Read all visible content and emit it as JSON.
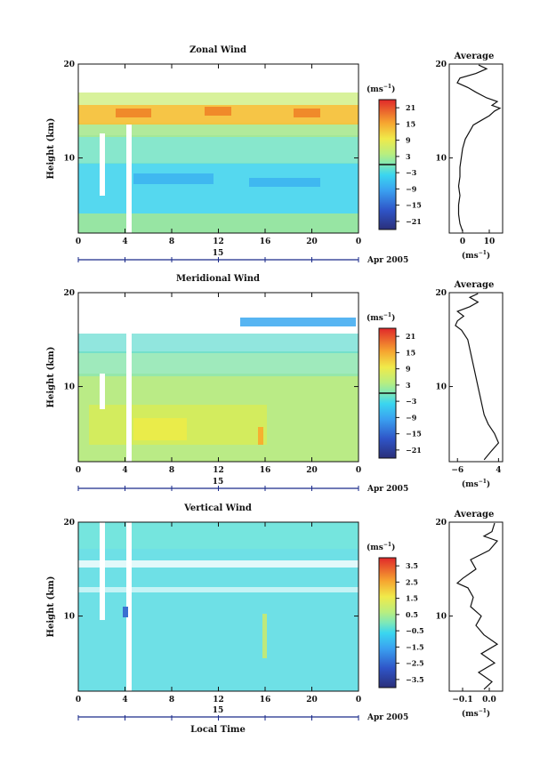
{
  "figure": {
    "ylabel": "Height (km)",
    "xlabel": "Local Time",
    "date_label": "Apr 2005",
    "day_label": "15",
    "cb_unit": "(ms",
    "cb_unit_exp": "−1",
    "cb_unit_close": ")",
    "avg_unit": "(ms",
    "avg_unit_exp": "−1",
    "avg_unit_close": ")"
  },
  "chart_data": [
    {
      "type": "heatmap",
      "title": "Zonal Wind",
      "xlabel": "",
      "ylabel": "Height (km)",
      "x_ticks": [
        "0",
        "4",
        "8",
        "12",
        "16",
        "20",
        "0"
      ],
      "y_ticks": [
        "10",
        "20"
      ],
      "xlim": [
        0,
        24
      ],
      "ylim": [
        2,
        20
      ],
      "colorbar": {
        "labels": [
          "21",
          "15",
          "9",
          "3",
          "−3",
          "−9",
          "−15",
          "−21"
        ],
        "range": [
          -24,
          24
        ],
        "zero_line": 0
      },
      "avg_title": "Average",
      "avg_xlim": [
        -5,
        15
      ],
      "avg_xticks": [
        "0",
        "10"
      ],
      "avg_yticks": [
        "10",
        "20"
      ],
      "profile": [
        {
          "h": 2.2,
          "v": 0
        },
        {
          "h": 3,
          "v": -1
        },
        {
          "h": 4,
          "v": -1.5
        },
        {
          "h": 5,
          "v": -1.5
        },
        {
          "h": 6,
          "v": -1
        },
        {
          "h": 7,
          "v": -1.5
        },
        {
          "h": 8,
          "v": -1
        },
        {
          "h": 9,
          "v": -1
        },
        {
          "h": 10,
          "v": -0.5
        },
        {
          "h": 11,
          "v": 0
        },
        {
          "h": 12,
          "v": 1
        },
        {
          "h": 13,
          "v": 3
        },
        {
          "h": 13.5,
          "v": 4
        },
        {
          "h": 14,
          "v": 7
        },
        {
          "h": 14.5,
          "v": 10
        },
        {
          "h": 15,
          "v": 12
        },
        {
          "h": 15.3,
          "v": 14
        },
        {
          "h": 15.6,
          "v": 11
        },
        {
          "h": 16,
          "v": 13
        },
        {
          "h": 16.4,
          "v": 9
        },
        {
          "h": 17,
          "v": 5
        },
        {
          "h": 17.5,
          "v": 2
        },
        {
          "h": 18,
          "v": -2
        },
        {
          "h": 18.5,
          "v": -1
        },
        {
          "h": 19,
          "v": 5
        },
        {
          "h": 19.5,
          "v": 9
        },
        {
          "h": 19.9,
          "v": 6
        }
      ]
    },
    {
      "type": "heatmap",
      "title": "Meridional Wind",
      "xlabel": "",
      "ylabel": "Height (km)",
      "x_ticks": [
        "0",
        "4",
        "8",
        "12",
        "16",
        "20",
        "0"
      ],
      "y_ticks": [
        "10",
        "20"
      ],
      "xlim": [
        0,
        24
      ],
      "ylim": [
        2,
        20
      ],
      "colorbar": {
        "labels": [
          "21",
          "15",
          "9",
          "3",
          "−3",
          "−9",
          "−15",
          "−21"
        ],
        "range": [
          -24,
          24
        ],
        "zero_line": 0
      },
      "avg_title": "Average",
      "avg_xlim": [
        -8,
        5
      ],
      "avg_xticks": [
        "−6",
        "4"
      ],
      "avg_yticks": [
        "10",
        "20"
      ],
      "profile": [
        {
          "h": 2.2,
          "v": 0.5
        },
        {
          "h": 3,
          "v": 2
        },
        {
          "h": 4,
          "v": 4
        },
        {
          "h": 5,
          "v": 3
        },
        {
          "h": 6,
          "v": 1.5
        },
        {
          "h": 7,
          "v": 0.5
        },
        {
          "h": 8,
          "v": 0
        },
        {
          "h": 9,
          "v": -0.5
        },
        {
          "h": 10,
          "v": -1
        },
        {
          "h": 11,
          "v": -1.5
        },
        {
          "h": 12,
          "v": -2
        },
        {
          "h": 13,
          "v": -2.5
        },
        {
          "h": 14,
          "v": -3
        },
        {
          "h": 15,
          "v": -3.5
        },
        {
          "h": 16,
          "v": -5
        },
        {
          "h": 16.5,
          "v": -6.5
        },
        {
          "h": 17,
          "v": -6
        },
        {
          "h": 17.5,
          "v": -4.5
        },
        {
          "h": 18,
          "v": -6
        },
        {
          "h": 18.5,
          "v": -3
        },
        {
          "h": 19,
          "v": -1
        },
        {
          "h": 19.5,
          "v": -3
        },
        {
          "h": 19.9,
          "v": -1
        }
      ]
    },
    {
      "type": "heatmap",
      "title": "Vertical Wind",
      "xlabel": "Local Time",
      "ylabel": "Height (km)",
      "x_ticks": [
        "0",
        "4",
        "8",
        "12",
        "16",
        "20",
        "0"
      ],
      "y_ticks": [
        "10",
        "20"
      ],
      "xlim": [
        0,
        24
      ],
      "ylim": [
        2,
        20
      ],
      "colorbar": {
        "labels": [
          "3.5",
          "2.5",
          "1.5",
          "0.5",
          "−0.5",
          "−1.5",
          "−2.5",
          "−3.5"
        ],
        "range": [
          -4,
          4
        ]
      },
      "avg_title": "Average",
      "avg_xlim": [
        -0.15,
        0.05
      ],
      "avg_xticks": [
        "−0.1",
        "0.0"
      ],
      "avg_yticks": [
        "10",
        "20"
      ],
      "profile": [
        {
          "h": 2.2,
          "v": -0.02
        },
        {
          "h": 3,
          "v": 0.01
        },
        {
          "h": 4,
          "v": -0.04
        },
        {
          "h": 5,
          "v": 0.02
        },
        {
          "h": 6,
          "v": -0.03
        },
        {
          "h": 7,
          "v": 0.03
        },
        {
          "h": 8,
          "v": -0.02
        },
        {
          "h": 9,
          "v": -0.05
        },
        {
          "h": 10,
          "v": -0.03
        },
        {
          "h": 11,
          "v": -0.07
        },
        {
          "h": 12,
          "v": -0.06
        },
        {
          "h": 13,
          "v": -0.08
        },
        {
          "h": 13.5,
          "v": -0.12
        },
        {
          "h": 14,
          "v": -0.1
        },
        {
          "h": 15,
          "v": -0.05
        },
        {
          "h": 16,
          "v": -0.07
        },
        {
          "h": 17,
          "v": 0.0
        },
        {
          "h": 18,
          "v": 0.03
        },
        {
          "h": 18.5,
          "v": -0.02
        },
        {
          "h": 19,
          "v": 0.01
        },
        {
          "h": 19.9,
          "v": 0.02
        }
      ]
    }
  ]
}
